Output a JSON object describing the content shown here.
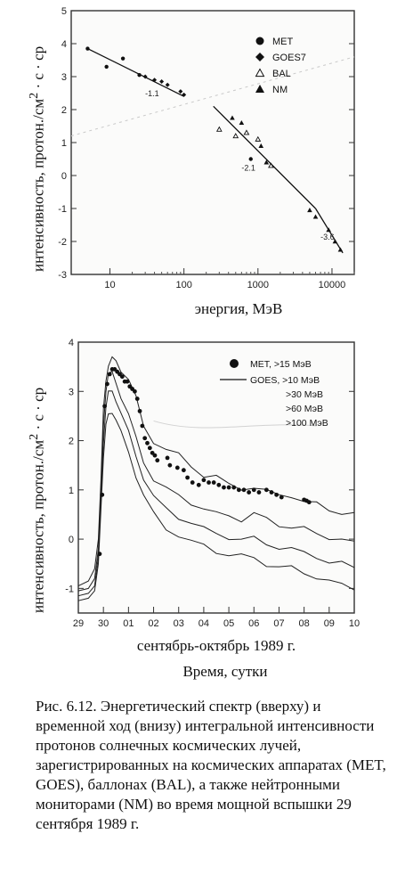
{
  "chart_data": [
    {
      "type": "scatter",
      "title": "",
      "xlabel": "энергия, МэВ",
      "ylabel_main": "интенсивность, протон./см",
      "ylabel_sup": "2",
      "ylabel_tail": " · с · ср",
      "xscale": "log",
      "xlim": [
        3,
        20000
      ],
      "ylim": [
        -3,
        5
      ],
      "xticks": [
        10,
        100,
        1000,
        10000
      ],
      "xtick_labels": [
        "10",
        "100",
        "1000",
        "10000"
      ],
      "yticks": [
        -3,
        -2,
        -1,
        0,
        1,
        2,
        3,
        4,
        5
      ],
      "ytick_labels": [
        "-3",
        "-2",
        "-1",
        "0",
        "1",
        "2",
        "3",
        "4",
        "5"
      ],
      "legend_position": "top-right",
      "series": [
        {
          "name": "MET",
          "marker": "circle",
          "points": [
            [
              5,
              3.85
            ],
            [
              9,
              3.3
            ],
            [
              15,
              3.55
            ],
            [
              25,
              3.05
            ],
            [
              800,
              0.5
            ]
          ]
        },
        {
          "name": "GOES7",
          "marker": "diamond",
          "points": [
            [
              30,
              3.0
            ],
            [
              40,
              2.9
            ],
            [
              50,
              2.85
            ],
            [
              60,
              2.75
            ],
            [
              90,
              2.55
            ],
            [
              100,
              2.45
            ]
          ]
        },
        {
          "name": "BAL",
          "marker": "triangle-open",
          "points": [
            [
              300,
              1.4
            ],
            [
              500,
              1.2
            ],
            [
              700,
              1.3
            ],
            [
              1000,
              1.1
            ],
            [
              1500,
              0.3
            ]
          ]
        },
        {
          "name": "NM",
          "marker": "triangle-filled",
          "points": [
            [
              450,
              1.75
            ],
            [
              600,
              1.6
            ],
            [
              1100,
              0.9
            ],
            [
              1300,
              0.4
            ],
            [
              5000,
              -1.05
            ],
            [
              6000,
              -1.25
            ],
            [
              9000,
              -1.65
            ],
            [
              11000,
              -2.0
            ],
            [
              13000,
              -2.25
            ]
          ]
        }
      ],
      "fits": [
        {
          "from": [
            5,
            3.85
          ],
          "to": [
            100,
            2.4
          ],
          "label": "-1.1",
          "label_at": [
            30,
            2.4
          ]
        },
        {
          "from": [
            250,
            2.1
          ],
          "to": [
            6000,
            -1.0
          ],
          "label": "-2.1",
          "label_at": [
            600,
            0.15
          ]
        },
        {
          "from": [
            6000,
            -1.0
          ],
          "to": [
            14000,
            -2.35
          ],
          "label": "-3.6",
          "label_at": [
            7000,
            -1.95
          ]
        }
      ]
    },
    {
      "type": "line",
      "title": "",
      "xlabel": "сентябрь-октябрь 1989 г.",
      "xlabel2": "Время, сутки",
      "ylabel_main": "интенсивность, протон./см",
      "ylabel_sup": "2",
      "ylabel_tail": " · с · ср",
      "xlim": [
        29,
        40
      ],
      "ylim": [
        -1.5,
        4
      ],
      "xticks": [
        29,
        30,
        31,
        32,
        33,
        34,
        35,
        36,
        37,
        38,
        39,
        40
      ],
      "xtick_labels": [
        "29",
        "30",
        "01",
        "02",
        "03",
        "04",
        "05",
        "06",
        "07",
        "08",
        "09",
        "10"
      ],
      "yticks": [
        -1,
        0,
        1,
        2,
        3,
        4
      ],
      "ytick_labels": [
        "-1",
        "0",
        "1",
        "2",
        "3",
        "4"
      ],
      "legend_position": "top-right",
      "legend": [
        {
          "marker": "dot",
          "label": "MET, >15 МэВ"
        },
        {
          "marker": "line",
          "label": "GOES, >10 МэВ"
        },
        {
          "marker": "none",
          "label": ">30 МэВ"
        },
        {
          "marker": "none",
          "label": ">60 МэВ"
        },
        {
          "marker": "none",
          "label": ">100 МэВ"
        }
      ],
      "met_points": [
        [
          29.85,
          -0.3
        ],
        [
          29.95,
          0.9
        ],
        [
          30.05,
          2.7
        ],
        [
          30.15,
          3.15
        ],
        [
          30.25,
          3.35
        ],
        [
          30.35,
          3.45
        ],
        [
          30.45,
          3.45
        ],
        [
          30.55,
          3.4
        ],
        [
          30.65,
          3.35
        ],
        [
          30.75,
          3.3
        ],
        [
          30.85,
          3.2
        ],
        [
          30.95,
          3.2
        ],
        [
          31.05,
          3.1
        ],
        [
          31.15,
          3.05
        ],
        [
          31.25,
          3.0
        ],
        [
          31.35,
          2.85
        ],
        [
          31.45,
          2.6
        ],
        [
          31.55,
          2.3
        ],
        [
          31.65,
          2.05
        ],
        [
          31.75,
          1.95
        ],
        [
          31.85,
          1.85
        ],
        [
          31.95,
          1.75
        ],
        [
          32.05,
          1.7
        ],
        [
          32.15,
          1.6
        ],
        [
          32.55,
          1.65
        ],
        [
          32.65,
          1.5
        ],
        [
          32.95,
          1.45
        ],
        [
          33.2,
          1.4
        ],
        [
          33.35,
          1.25
        ],
        [
          33.55,
          1.15
        ],
        [
          33.8,
          1.1
        ],
        [
          34.0,
          1.2
        ],
        [
          34.2,
          1.15
        ],
        [
          34.4,
          1.15
        ],
        [
          34.6,
          1.1
        ],
        [
          34.8,
          1.05
        ],
        [
          35.0,
          1.05
        ],
        [
          35.2,
          1.05
        ],
        [
          35.4,
          1.0
        ],
        [
          35.6,
          1.0
        ],
        [
          35.8,
          0.95
        ],
        [
          36.0,
          1.0
        ],
        [
          36.2,
          0.95
        ],
        [
          36.5,
          1.0
        ],
        [
          36.7,
          0.95
        ],
        [
          36.9,
          0.9
        ],
        [
          37.1,
          0.85
        ],
        [
          38.0,
          0.8
        ],
        [
          38.1,
          0.78
        ],
        [
          38.2,
          0.75
        ]
      ],
      "series": [
        {
          "name": "GOES >10 МэВ",
          "x": [
            29.0,
            29.4,
            29.65,
            29.8,
            29.9,
            30.0,
            30.1,
            30.2,
            30.35,
            30.5,
            30.7,
            31.0,
            31.3,
            31.6,
            32.0,
            32.5,
            33.0,
            33.5,
            34.0,
            34.5,
            35.0,
            35.5,
            36.0,
            36.5,
            37.0,
            37.5,
            38.0,
            38.5,
            39.0,
            39.5,
            40.0
          ],
          "values": [
            -0.95,
            -0.85,
            -0.6,
            0.0,
            1.2,
            2.6,
            3.25,
            3.55,
            3.65,
            3.6,
            3.45,
            3.25,
            2.85,
            2.3,
            2.0,
            1.8,
            1.7,
            1.5,
            1.3,
            1.25,
            1.1,
            1.05,
            1.05,
            0.95,
            0.9,
            0.9,
            0.75,
            0.7,
            0.6,
            0.55,
            0.5
          ]
        },
        {
          "name": "GOES >30 МэВ",
          "x": [
            29.0,
            29.4,
            29.65,
            29.8,
            29.9,
            30.0,
            30.1,
            30.2,
            30.35,
            30.5,
            30.7,
            31.0,
            31.3,
            31.6,
            32.0,
            32.5,
            33.0,
            33.5,
            34.0,
            34.5,
            35.0,
            35.5,
            36.0,
            36.5,
            37.0,
            37.5,
            38.0,
            38.5,
            39.0,
            39.5,
            40.0
          ],
          "values": [
            -1.05,
            -1.0,
            -0.8,
            -0.2,
            1.0,
            2.3,
            3.05,
            3.35,
            3.35,
            3.2,
            2.9,
            2.5,
            2.05,
            1.6,
            1.2,
            1.0,
            0.9,
            0.75,
            0.6,
            0.5,
            0.5,
            0.4,
            0.5,
            0.4,
            0.3,
            0.25,
            0.2,
            0.1,
            0.05,
            0.0,
            -0.1
          ]
        },
        {
          "name": "GOES >60 МэВ",
          "x": [
            29.0,
            29.4,
            29.65,
            29.8,
            29.9,
            30.0,
            30.1,
            30.2,
            30.35,
            30.5,
            30.7,
            31.0,
            31.3,
            31.6,
            32.0,
            32.5,
            33.0,
            33.5,
            34.0,
            34.5,
            35.0,
            35.5,
            36.0,
            36.5,
            37.0,
            37.5,
            38.0,
            38.5,
            39.0,
            39.5,
            40.0
          ],
          "values": [
            -1.15,
            -1.1,
            -0.95,
            -0.35,
            0.8,
            2.0,
            2.7,
            2.95,
            3.0,
            2.85,
            2.55,
            2.15,
            1.7,
            1.25,
            0.85,
            0.6,
            0.45,
            0.35,
            0.2,
            0.1,
            0.05,
            0.0,
            0.0,
            -0.1,
            -0.15,
            -0.2,
            -0.3,
            -0.35,
            -0.45,
            -0.5,
            -0.6
          ]
        },
        {
          "name": "GOES >100 МэВ",
          "x": [
            29.0,
            29.4,
            29.65,
            29.8,
            29.9,
            30.0,
            30.1,
            30.2,
            30.35,
            30.5,
            30.7,
            31.0,
            31.3,
            31.6,
            32.0,
            32.5,
            33.0,
            33.5,
            34.0,
            34.5,
            35.0,
            35.5,
            36.0,
            36.5,
            37.0,
            37.5,
            38.0,
            38.5,
            39.0,
            39.5,
            40.0
          ],
          "values": [
            -1.25,
            -1.2,
            -1.05,
            -0.5,
            0.6,
            1.7,
            2.3,
            2.5,
            2.6,
            2.45,
            2.15,
            1.75,
            1.3,
            0.9,
            0.5,
            0.2,
            0.1,
            -0.05,
            -0.15,
            -0.25,
            -0.3,
            -0.35,
            -0.4,
            -0.5,
            -0.55,
            -0.6,
            -0.7,
            -0.75,
            -0.85,
            -0.95,
            -1.0
          ]
        }
      ]
    }
  ],
  "caption": "Рис. 6.12. Энергетический спектр (вверху) и временной ход (внизу) интегральной интенсивности протонов солнечных космических лучей, зарегистрированных на космических аппаратах (MET, GOES), баллонах (BAL), а также нейтронными мониторами (NM) во время мощной вспышки 29 сентября 1989 г."
}
